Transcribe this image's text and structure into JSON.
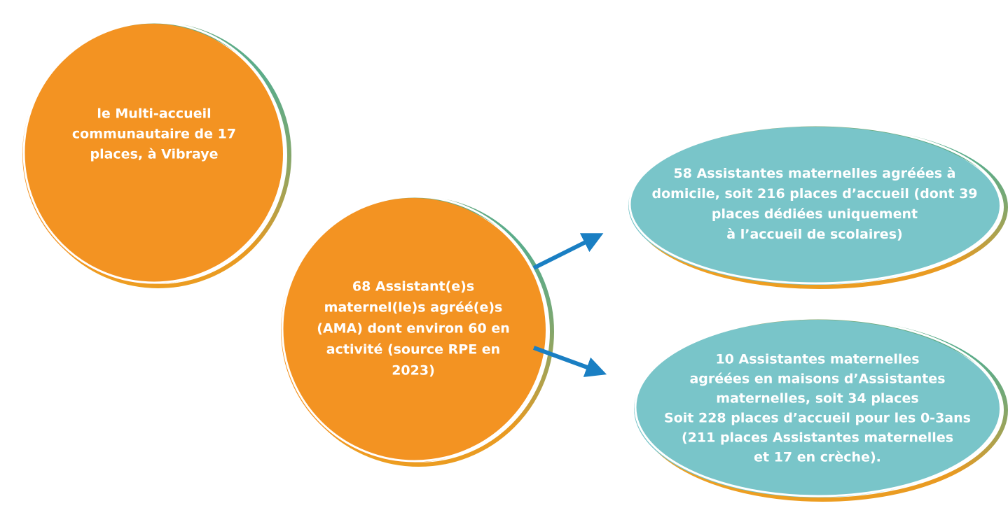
{
  "nodes": [
    {
      "lines": [
        "le Multi-accueil",
        "communautaire de 17",
        "places, à Vibraye"
      ]
    },
    {
      "lines": [
        "68 Assistant(e)s",
        "maternel(le)s agréé(e)s",
        "(AMA) dont environ 60 en",
        "activité (source RPE en",
        "2023)"
      ]
    },
    {
      "lines": [
        "58 Assistantes maternelles agréées à",
        "domicile, soit 216 places d’accueil (dont 39",
        "places dédiées uniquement",
        "à l’accueil de scolaires)"
      ]
    },
    {
      "lines": [
        "10 Assistantes maternelles",
        "agréées en maisons d’Assistantes",
        "maternelles, soit 34 places",
        "Soit 228 places d’accueil pour les 0-3ans",
        "(211 places Assistantes maternelles",
        "et 17 en crèche)."
      ]
    }
  ]
}
